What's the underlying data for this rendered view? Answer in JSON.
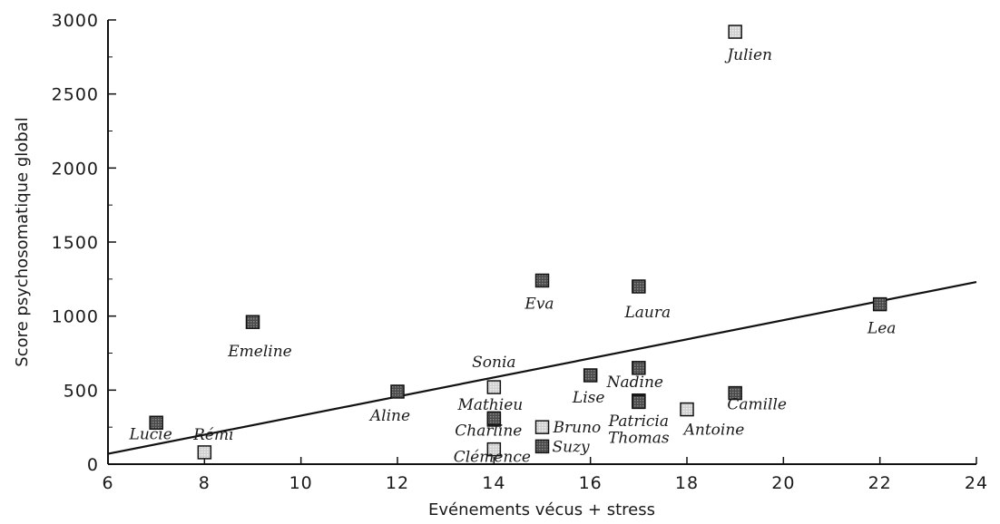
{
  "chart_data": {
    "type": "scatter",
    "title": "",
    "xlabel": "Evénements vécus + stress",
    "ylabel": "Score psychosomatique global",
    "xlim": [
      6,
      24
    ],
    "ylim": [
      0,
      3000
    ],
    "x_ticks": [
      6,
      8,
      10,
      12,
      14,
      16,
      18,
      20,
      22,
      24
    ],
    "y_ticks": [
      0,
      500,
      1000,
      1500,
      2000,
      2500,
      3000
    ],
    "y_tick_labels": [
      "0",
      "500",
      "1000",
      "1500",
      "2000",
      "2500",
      "3000"
    ],
    "grid": false,
    "trendline": {
      "x": [
        6,
        24
      ],
      "y": [
        70,
        1230
      ]
    },
    "points": [
      {
        "label": "Julien",
        "x": 19,
        "y": 2920,
        "fill": "light"
      },
      {
        "label": "Lea",
        "x": 22,
        "y": 1080,
        "fill": "dark"
      },
      {
        "label": "Eva",
        "x": 15,
        "y": 1240,
        "fill": "dark"
      },
      {
        "label": "Laura",
        "x": 17,
        "y": 1200,
        "fill": "dark"
      },
      {
        "label": "Emeline",
        "x": 9,
        "y": 960,
        "fill": "dark"
      },
      {
        "label": "Sonia",
        "x": 14,
        "y": 520,
        "fill": "light"
      },
      {
        "label": "Lise",
        "x": 16,
        "y": 600,
        "fill": "dark"
      },
      {
        "label": "Nadine",
        "x": 17,
        "y": 650,
        "fill": "dark"
      },
      {
        "label": "Aline",
        "x": 12,
        "y": 490,
        "fill": "dark"
      },
      {
        "label": "Mathieu",
        "x": 14,
        "y": 300,
        "fill": "dark"
      },
      {
        "label": "Camille",
        "x": 19,
        "y": 480,
        "fill": "dark"
      },
      {
        "label": "Patricia",
        "x": 17,
        "y": 430,
        "fill": "dark"
      },
      {
        "label": "Antoine",
        "x": 18,
        "y": 370,
        "fill": "light"
      },
      {
        "label": "Charline",
        "x": 14,
        "y": 310,
        "fill": "dark"
      },
      {
        "label": "Bruno",
        "x": 15,
        "y": 250,
        "fill": "light"
      },
      {
        "label": "Thomas",
        "x": 17,
        "y": 420,
        "fill": "dark"
      },
      {
        "label": "Lucie",
        "x": 7,
        "y": 280,
        "fill": "dark"
      },
      {
        "label": "Rémi",
        "x": 8,
        "y": 80,
        "fill": "light"
      },
      {
        "label": "Suzy",
        "x": 15,
        "y": 120,
        "fill": "dark"
      },
      {
        "label": "Clémence",
        "x": 14,
        "y": 100,
        "fill": "light"
      }
    ]
  }
}
